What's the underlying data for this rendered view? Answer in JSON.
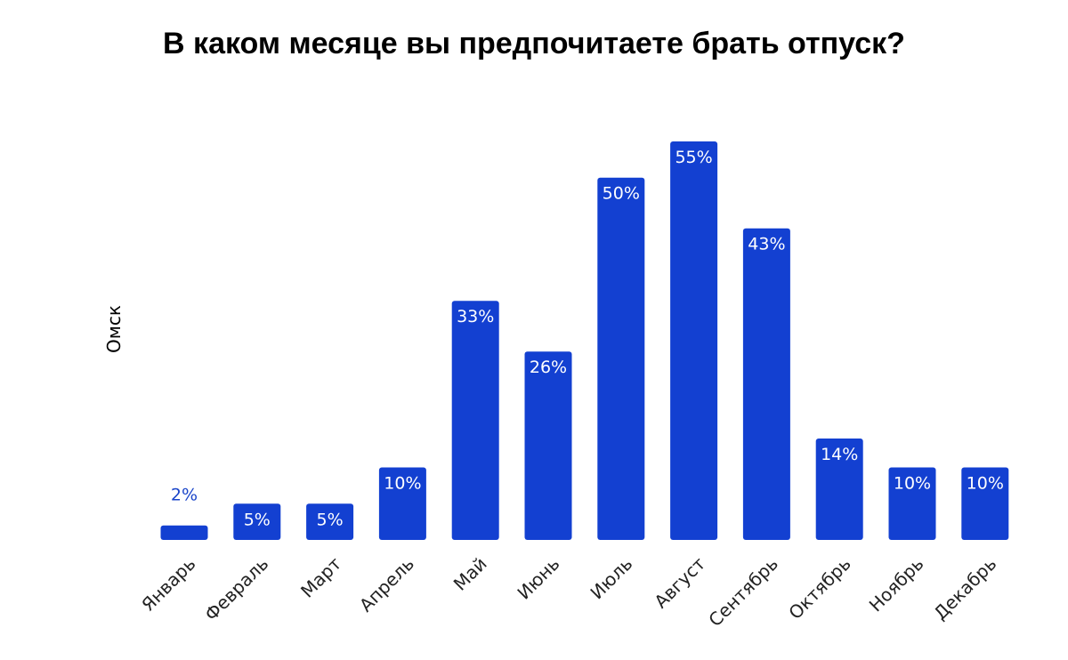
{
  "chart_data": {
    "type": "bar",
    "title": "В каком месяце вы предпочитаете брать отпуск?",
    "xlabel": "",
    "ylabel": "Омск",
    "categories": [
      "Январь",
      "Февраль",
      "Март",
      "Апрель",
      "Май",
      "Июнь",
      "Июль",
      "Август",
      "Сентябрь",
      "Октябрь",
      "Ноябрь",
      "Декабрь"
    ],
    "values": [
      2,
      5,
      5,
      10,
      33,
      26,
      50,
      55,
      43,
      14,
      10,
      10
    ],
    "value_labels": [
      "2%",
      "5%",
      "5%",
      "10%",
      "33%",
      "26%",
      "50%",
      "55%",
      "43%",
      "14%",
      "10%",
      "10%"
    ],
    "ylim": [
      0,
      55
    ],
    "grid": false,
    "legend": "none",
    "bar_color": "#1340d1",
    "label_inside_color": "#ffffff",
    "label_outside_color": "#1a45c9"
  }
}
